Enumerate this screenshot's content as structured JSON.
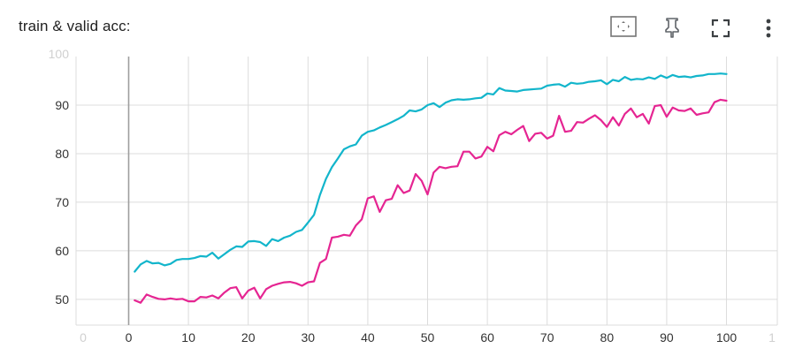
{
  "card": {
    "title": "train & valid acc:"
  },
  "toolbar": {
    "icons": [
      "fit-domain-icon",
      "pin-icon",
      "fullscreen-icon",
      "more-vert-icon"
    ]
  },
  "chart_data": {
    "type": "line",
    "title": "",
    "xlabel": "",
    "ylabel": "",
    "xlim": [
      -8.8,
      108.5
    ],
    "ylim": [
      44.7,
      100
    ],
    "grid": true,
    "x_ticks": [
      "0",
      "10",
      "20",
      "30",
      "40",
      "50",
      "60",
      "70",
      "80",
      "90",
      "100"
    ],
    "x_ticks_faded_left": "0",
    "x_ticks_faded_right": "1",
    "y_ticks": [
      "50",
      "60",
      "70",
      "80",
      "90"
    ],
    "y_tick_faded_top": "100",
    "colors": {
      "train": "#12b5cb",
      "valid": "#e52592",
      "grid": "#dcdcdc",
      "zero_axis": "#9e9e9e"
    },
    "series": [
      {
        "color": "#12b5cb",
        "x": [
          1,
          2,
          3,
          4,
          5,
          6,
          7,
          8,
          9,
          10,
          11,
          12,
          13,
          14,
          15,
          16,
          17,
          18,
          19,
          20,
          21,
          22,
          23,
          24,
          25,
          26,
          27,
          28,
          29,
          30,
          31,
          32,
          33,
          34,
          35,
          36,
          37,
          38,
          39,
          40,
          41,
          42,
          43,
          44,
          45,
          46,
          47,
          48,
          49,
          50,
          51,
          52,
          53,
          54,
          55,
          56,
          57,
          58,
          59,
          60,
          61,
          62,
          63,
          64,
          65,
          66,
          67,
          68,
          69,
          70,
          71,
          72,
          73,
          74,
          75,
          76,
          77,
          78,
          79,
          80,
          81,
          82,
          83,
          84,
          85,
          86,
          87,
          88,
          89,
          90,
          91,
          92,
          93,
          94,
          95,
          96,
          97,
          98,
          99,
          100
        ],
        "values": [
          55.7,
          57.2,
          57.9,
          57.4,
          57.5,
          57.0,
          57.3,
          58.1,
          58.3,
          58.3,
          58.5,
          58.9,
          58.8,
          59.6,
          58.4,
          59.3,
          60.2,
          60.9,
          60.8,
          61.9,
          62.0,
          61.8,
          61.0,
          62.4,
          62.0,
          62.7,
          63.1,
          63.9,
          64.3,
          65.8,
          67.4,
          71.5,
          74.8,
          77.2,
          79.0,
          80.9,
          81.5,
          81.9,
          83.7,
          84.5,
          84.8,
          85.4,
          85.9,
          86.5,
          87.1,
          87.8,
          88.9,
          88.7,
          89.1,
          90.0,
          90.4,
          89.6,
          90.5,
          91.0,
          91.2,
          91.1,
          91.2,
          91.4,
          91.5,
          92.4,
          92.2,
          93.5,
          93.0,
          92.9,
          92.8,
          93.1,
          93.2,
          93.3,
          93.4,
          94.0,
          94.2,
          94.3,
          93.8,
          94.6,
          94.4,
          94.5,
          94.8,
          94.9,
          95.1,
          94.3,
          95.2,
          94.9,
          95.8,
          95.2,
          95.4,
          95.3,
          95.7,
          95.4,
          96.1,
          95.6,
          96.2,
          95.8,
          95.9,
          95.7,
          96.0,
          96.1,
          96.4,
          96.4,
          96.5,
          96.4
        ]
      },
      {
        "color": "#e52592",
        "x": [
          1,
          2,
          3,
          4,
          5,
          6,
          7,
          8,
          9,
          10,
          11,
          12,
          13,
          14,
          15,
          16,
          17,
          18,
          19,
          20,
          21,
          22,
          23,
          24,
          25,
          26,
          27,
          28,
          29,
          30,
          31,
          32,
          33,
          34,
          35,
          36,
          37,
          38,
          39,
          40,
          41,
          42,
          43,
          44,
          45,
          46,
          47,
          48,
          49,
          50,
          51,
          52,
          53,
          54,
          55,
          56,
          57,
          58,
          59,
          60,
          61,
          62,
          63,
          64,
          65,
          66,
          67,
          68,
          69,
          70,
          71,
          72,
          73,
          74,
          75,
          76,
          77,
          78,
          79,
          80,
          81,
          82,
          83,
          84,
          85,
          86,
          87,
          88,
          89,
          90,
          91,
          92,
          93,
          94,
          95,
          96,
          97,
          98,
          99,
          100
        ],
        "values": [
          49.8,
          49.3,
          51.0,
          50.5,
          50.1,
          50.0,
          50.2,
          50.0,
          50.1,
          49.6,
          49.6,
          50.5,
          50.4,
          50.8,
          50.2,
          51.4,
          52.3,
          52.5,
          50.2,
          51.8,
          52.4,
          50.2,
          52.1,
          52.8,
          53.2,
          53.5,
          53.6,
          53.3,
          52.8,
          53.5,
          53.7,
          57.5,
          58.3,
          62.7,
          62.9,
          63.3,
          63.1,
          65.2,
          66.5,
          70.8,
          71.2,
          68.0,
          70.4,
          70.7,
          73.5,
          71.9,
          72.4,
          75.8,
          74.4,
          71.6,
          76.1,
          77.3,
          77.0,
          77.3,
          77.4,
          80.4,
          80.4,
          79.0,
          79.4,
          81.4,
          80.5,
          83.8,
          84.5,
          84.0,
          84.9,
          85.7,
          82.6,
          84.1,
          84.3,
          83.1,
          83.7,
          87.8,
          84.5,
          84.7,
          86.5,
          86.4,
          87.2,
          87.9,
          86.9,
          85.5,
          87.5,
          85.8,
          88.2,
          89.3,
          87.5,
          88.2,
          86.2,
          89.8,
          90.0,
          87.6,
          89.5,
          88.9,
          88.8,
          89.3,
          88.0,
          88.3,
          88.5,
          90.6,
          91.1,
          90.9
        ]
      }
    ]
  }
}
